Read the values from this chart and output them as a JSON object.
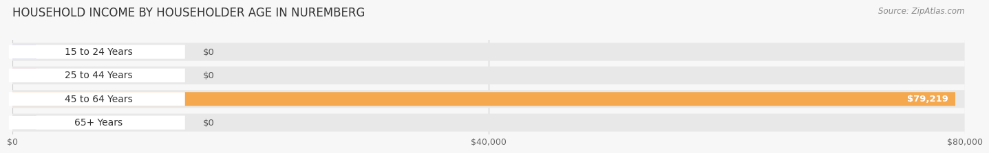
{
  "title": "HOUSEHOLD INCOME BY HOUSEHOLDER AGE IN NUREMBERG",
  "source": "Source: ZipAtlas.com",
  "categories": [
    "15 to 24 Years",
    "25 to 44 Years",
    "45 to 64 Years",
    "65+ Years"
  ],
  "values": [
    0,
    0,
    79219,
    0
  ],
  "bar_colors": [
    "#a8a8d8",
    "#f088a8",
    "#f5a84e",
    "#f0a0a8"
  ],
  "bar_labels": [
    "$0",
    "$0",
    "$79,219",
    "$0"
  ],
  "xlim": [
    0,
    80000
  ],
  "xticks": [
    0,
    40000,
    80000
  ],
  "xticklabels": [
    "$0",
    "$40,000",
    "$80,000"
  ],
  "bg_color": "#f7f7f7",
  "row_bg_color": "#e8e8e8",
  "title_fontsize": 12,
  "source_fontsize": 8.5,
  "label_fontsize": 10,
  "value_fontsize": 9.5,
  "tick_fontsize": 9
}
